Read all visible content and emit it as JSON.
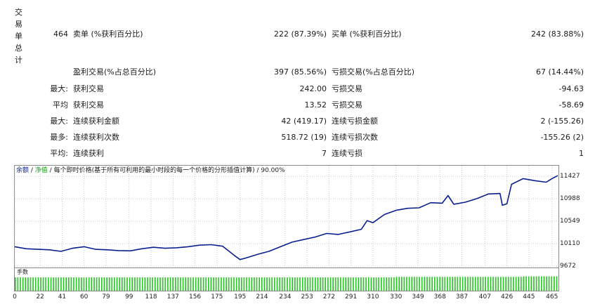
{
  "section_label": "交易单总计",
  "summary": {
    "total_trades": "464",
    "short_label": "卖单 (%获利百分比)",
    "short_value": "222 (87.39%)",
    "long_label": "买单 (%获利百分比)",
    "long_value": "242 (83.88%)"
  },
  "rows": [
    {
      "prefix": "",
      "left_label": "盈利交易(%占总百分比)",
      "left_value": "397 (85.56%)",
      "right_label": "亏损交易(%占总百分比)",
      "right_value": "67 (14.44%)"
    },
    {
      "prefix": "最大:",
      "left_label": "获利交易",
      "left_value": "242.00",
      "right_label": "亏损交易",
      "right_value": "-94.63"
    },
    {
      "prefix": "平均",
      "left_label": "获利交易",
      "left_value": "13.52",
      "right_label": "亏损交易",
      "right_value": "-58.69"
    },
    {
      "prefix": "最大:",
      "left_label": "连续获利金额",
      "left_value": "42 (419.17)",
      "right_label": "连续亏损金额",
      "right_value": "2 (-155.26)"
    },
    {
      "prefix": "最多:",
      "left_label": "连续获利次数",
      "left_value": "518.72 (19)",
      "right_label": "连续亏损次数",
      "right_value": "-155.26 (2)"
    },
    {
      "prefix": "平均:",
      "left_label": "连续获利",
      "left_value": "7",
      "right_label": "连续亏损",
      "right_value": "1"
    }
  ],
  "chart": {
    "legend_balance": "余额",
    "legend_sep1": " / ",
    "legend_equity": "净值",
    "legend_sep2": " / ",
    "legend_text": "每个即时价格(基于所有可利用的最小时段的每一个价格的分形插值计算) / 90.00%",
    "volume_label": "手数",
    "balance_color": "#0a1f8f",
    "volume_color": "#22c41e",
    "grid_color": "#c8c8c8"
  },
  "chart_data": {
    "type": "line",
    "xlabel": "",
    "ylabel": "",
    "x_ticks": [
      0,
      22,
      41,
      60,
      79,
      99,
      118,
      137,
      156,
      175,
      195,
      214,
      234,
      253,
      272,
      291,
      310,
      330,
      349,
      368,
      387,
      407,
      426,
      445,
      465
    ],
    "y_ticks": [
      9672,
      10110,
      10549,
      10988,
      11427
    ],
    "xlim": [
      0,
      470
    ],
    "ylim": [
      9672,
      11427
    ],
    "grid": true,
    "series": [
      {
        "name": "余额",
        "x": [
          0,
          10,
          20,
          30,
          40,
          50,
          60,
          70,
          80,
          90,
          100,
          110,
          120,
          130,
          140,
          150,
          160,
          170,
          180,
          190,
          195,
          200,
          210,
          220,
          230,
          240,
          250,
          260,
          270,
          280,
          290,
          300,
          305,
          310,
          320,
          330,
          340,
          350,
          360,
          370,
          375,
          380,
          390,
          400,
          410,
          420,
          422,
          426,
          430,
          440,
          450,
          460,
          465,
          470
        ],
        "values": [
          10050,
          10010,
          10000,
          9990,
          9960,
          10020,
          10050,
          10000,
          9990,
          9975,
          9970,
          10010,
          10040,
          10020,
          10030,
          10050,
          10080,
          10090,
          10060,
          9880,
          9800,
          9830,
          9900,
          9960,
          10050,
          10140,
          10190,
          10240,
          10310,
          10290,
          10340,
          10390,
          10560,
          10520,
          10680,
          10760,
          10800,
          10810,
          10910,
          10900,
          11050,
          10880,
          10920,
          10990,
          11080,
          11090,
          10860,
          10890,
          11270,
          11380,
          11340,
          11310,
          11380,
          11440
        ]
      }
    ],
    "volume_values_note": "",
    "volume_series": {
      "name": "手数",
      "segments": [
        {
          "from": 0,
          "to": 330,
          "value": 0.9
        },
        {
          "from": 330,
          "to": 440,
          "value": 0.94
        },
        {
          "from": 440,
          "to": 470,
          "value": 0.97
        }
      ]
    }
  }
}
